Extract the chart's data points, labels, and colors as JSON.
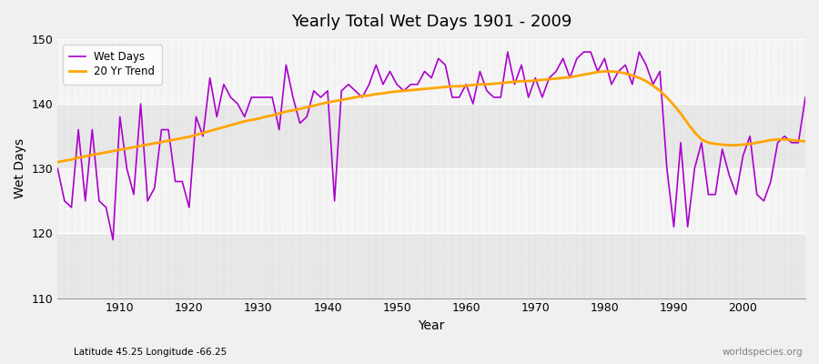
{
  "title": "Yearly Total Wet Days 1901 - 2009",
  "xlabel": "Year",
  "ylabel": "Wet Days",
  "subtitle_left": "Latitude 45.25 Longitude -66.25",
  "subtitle_right": "worldspecies.org",
  "ylim": [
    110,
    150
  ],
  "xlim": [
    1901,
    2009
  ],
  "yticks": [
    110,
    120,
    130,
    140,
    150
  ],
  "xticks": [
    1910,
    1920,
    1930,
    1940,
    1950,
    1960,
    1970,
    1980,
    1990,
    2000
  ],
  "wet_days_color": "#AA00CC",
  "trend_color": "#FFA500",
  "background_color": "#F0F0F0",
  "plot_bg_color": "#FFFFFF",
  "band_color_light": "#E8E8E8",
  "band_color_dark": "#F5F5F5",
  "wet_days": [
    130,
    125,
    124,
    136,
    125,
    136,
    125,
    124,
    119,
    138,
    130,
    126,
    140,
    125,
    127,
    136,
    136,
    128,
    128,
    124,
    138,
    135,
    144,
    138,
    143,
    141,
    140,
    138,
    141,
    141,
    141,
    141,
    136,
    146,
    141,
    137,
    138,
    142,
    141,
    142,
    125,
    142,
    143,
    142,
    141,
    143,
    146,
    143,
    145,
    143,
    142,
    143,
    143,
    145,
    144,
    147,
    146,
    141,
    141,
    143,
    140,
    145,
    142,
    141,
    141,
    148,
    143,
    146,
    141,
    144,
    141,
    144,
    145,
    147,
    144,
    147,
    148,
    148,
    145,
    147,
    143,
    145,
    146,
    143,
    148,
    146,
    143,
    145,
    130,
    121,
    134,
    121,
    130,
    134,
    126,
    126,
    133,
    129,
    126,
    132,
    135,
    126,
    125,
    128,
    134,
    135,
    134,
    134,
    141
  ],
  "trend": [
    131.0,
    131.2,
    131.4,
    131.7,
    131.9,
    132.1,
    132.3,
    132.5,
    132.7,
    132.9,
    133.1,
    133.3,
    133.5,
    133.7,
    133.9,
    134.1,
    134.3,
    134.5,
    134.7,
    134.9,
    135.2,
    135.5,
    135.8,
    136.1,
    136.4,
    136.7,
    137.0,
    137.3,
    137.5,
    137.7,
    138.0,
    138.2,
    138.5,
    138.8,
    139.0,
    139.2,
    139.5,
    139.7,
    140.0,
    140.2,
    140.4,
    140.6,
    140.8,
    141.0,
    141.2,
    141.3,
    141.5,
    141.6,
    141.8,
    141.9,
    142.0,
    142.1,
    142.2,
    142.3,
    142.4,
    142.5,
    142.6,
    142.7,
    142.7,
    142.8,
    142.9,
    143.0,
    143.0,
    143.1,
    143.2,
    143.3,
    143.4,
    143.5,
    143.5,
    143.6,
    143.7,
    143.8,
    143.9,
    144.0,
    144.1,
    144.3,
    144.5,
    144.7,
    144.9,
    145.0,
    145.0,
    144.9,
    144.7,
    144.4,
    144.0,
    143.5,
    142.8,
    142.0,
    141.0,
    139.8,
    138.5,
    137.0,
    135.6,
    134.5,
    134.0,
    133.8,
    133.7,
    133.6,
    133.6,
    133.7,
    133.8,
    134.0,
    134.2,
    134.4,
    134.5,
    134.5,
    134.4,
    134.3,
    134.2
  ]
}
